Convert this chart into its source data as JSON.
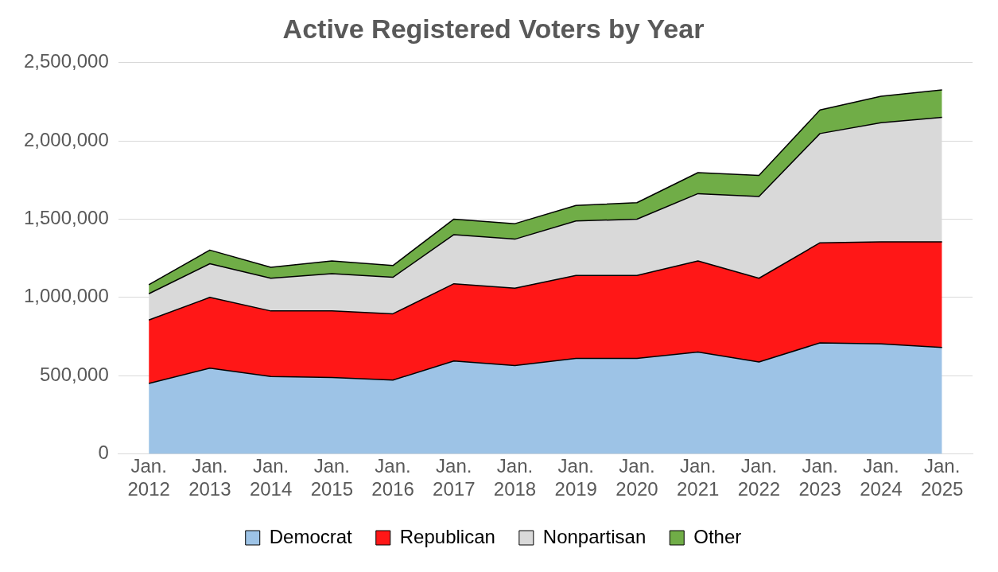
{
  "chart_data": {
    "type": "area",
    "title": "Active Registered Voters by Year",
    "stacked": true,
    "categories": [
      "Jan. 2012",
      "Jan. 2013",
      "Jan. 2014",
      "Jan. 2015",
      "Jan. 2016",
      "Jan. 2017",
      "Jan. 2018",
      "Jan. 2019",
      "Jan. 2020",
      "Jan. 2021",
      "Jan. 2022",
      "Jan. 2023",
      "Jan. 2024",
      "Jan. 2025"
    ],
    "series": [
      {
        "name": "Democrat",
        "color": "#9dc3e6",
        "values": [
          450000,
          547000,
          494000,
          488000,
          471000,
          593000,
          564000,
          610000,
          610000,
          651000,
          587000,
          709000,
          703000,
          680000
        ]
      },
      {
        "name": "Republican",
        "color": "#ff1717",
        "values": [
          405000,
          453000,
          419000,
          425000,
          424000,
          494000,
          494000,
          530000,
          530000,
          582000,
          535000,
          640000,
          652000,
          675000
        ]
      },
      {
        "name": "Nonpartisan",
        "color": "#d9d9d9",
        "values": [
          168000,
          215000,
          209000,
          238000,
          233000,
          314000,
          314000,
          348000,
          360000,
          430000,
          523000,
          698000,
          761000,
          796000
        ]
      },
      {
        "name": "Other",
        "color": "#70ad47",
        "values": [
          58000,
          87000,
          70000,
          82000,
          75000,
          99000,
          99000,
          99000,
          105000,
          134000,
          134000,
          151000,
          169000,
          175000
        ]
      }
    ],
    "ylim": [
      0,
      2500000
    ],
    "yticks": [
      0,
      {
        "value": 500000,
        "label": "500,000"
      },
      {
        "value": 1000000,
        "label": "1,000,000"
      },
      {
        "value": 1500000,
        "label": "1,500,000"
      },
      {
        "value": 2000000,
        "label": "2,000,000"
      },
      {
        "value": 2500000,
        "label": "2,500,000"
      }
    ],
    "grid": "y",
    "legend": "bottom"
  }
}
